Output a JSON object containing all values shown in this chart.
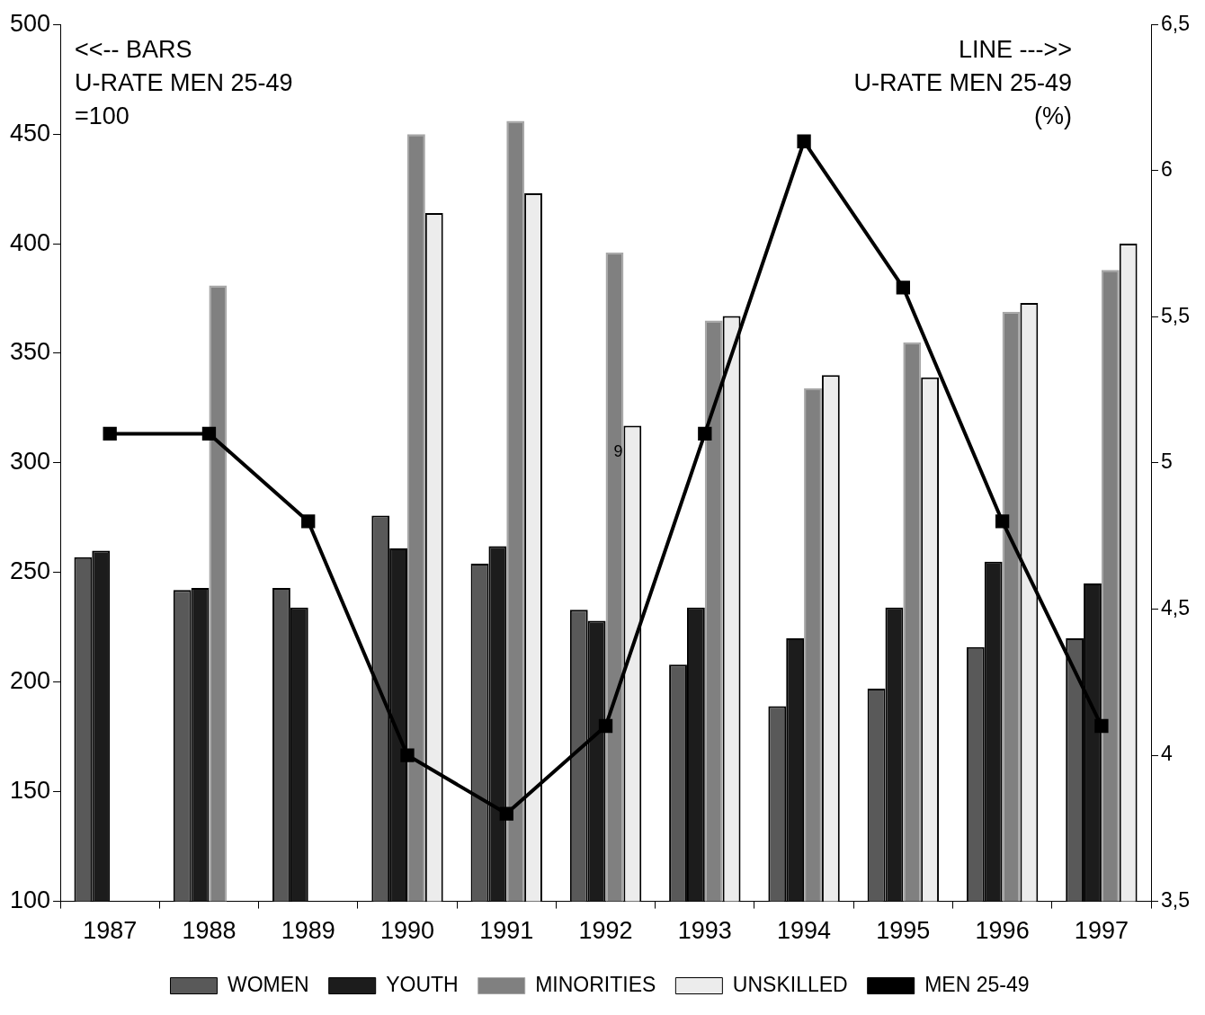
{
  "chart_data": {
    "type": "bar",
    "categories": [
      "1987",
      "1988",
      "1989",
      "1990",
      "1991",
      "1992",
      "1993",
      "1994",
      "1995",
      "1996",
      "1997"
    ],
    "series": [
      {
        "name": "WOMEN",
        "color": "#595959",
        "values": [
          257,
          242,
          243,
          276,
          254,
          233,
          208,
          189,
          197,
          216,
          220
        ]
      },
      {
        "name": "YOUTH",
        "color": "#1c1c1c",
        "values": [
          260,
          243,
          234,
          261,
          262,
          228,
          234,
          220,
          234,
          255,
          245
        ]
      },
      {
        "name": "MINORITIES",
        "color": "#808080",
        "values": [
          null,
          381,
          null,
          450,
          456,
          396,
          365,
          334,
          355,
          369,
          388
        ]
      },
      {
        "name": "UNSKILLED",
        "color": "#ececec",
        "values": [
          null,
          null,
          null,
          414,
          423,
          317,
          367,
          340,
          339,
          373,
          400
        ]
      },
      {
        "name": "MEN 25-49",
        "type": "line",
        "axis": "y2",
        "color": "#000000",
        "marker": "square",
        "values": [
          5.1,
          5.1,
          4.8,
          4.0,
          3.8,
          4.1,
          5.1,
          6.1,
          5.6,
          4.8,
          4.1
        ]
      }
    ],
    "ylim": [
      100,
      500
    ],
    "yticks": [
      100,
      150,
      200,
      250,
      300,
      350,
      400,
      450,
      500
    ],
    "y2lim": [
      3.5,
      6.5
    ],
    "y2ticks": [
      {
        "value": 3.5,
        "label": "3,5"
      },
      4,
      {
        "value": 4.5,
        "label": "4,5"
      },
      5,
      {
        "value": 5.5,
        "label": "5,5"
      },
      6,
      {
        "value": 6.5,
        "label": "6,5"
      }
    ],
    "legend": "bottom",
    "annotations": [
      "<<-- BARS\nU-RATE MEN 25-49\n=100",
      "LINE --->>\nU-RATE MEN 25-49\n(%)",
      {
        "text": "9",
        "x": "1992",
        "y": 305
      }
    ]
  }
}
